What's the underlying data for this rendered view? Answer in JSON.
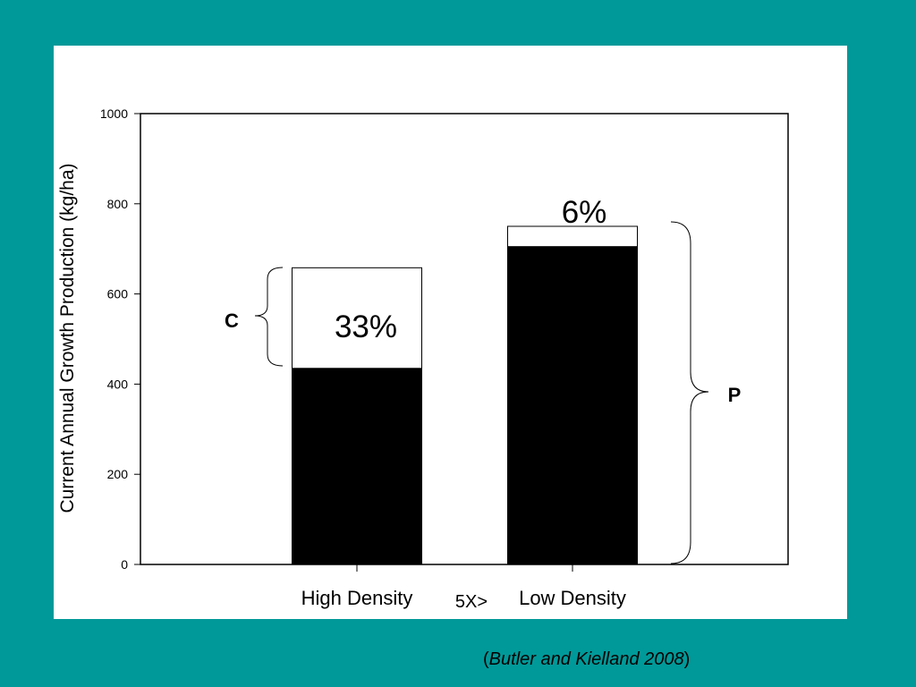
{
  "colors": {
    "background": "#009999",
    "panel": "#ffffff",
    "bar_fill": "#000000",
    "bar_top_fill": "#ffffff"
  },
  "chart_data": {
    "type": "bar",
    "stacked": true,
    "categories": [
      "High Density",
      "Low Density"
    ],
    "series": [
      {
        "values": [
          435,
          705
        ]
      },
      {
        "values": [
          223,
          45
        ]
      }
    ],
    "totals": [
      658,
      750
    ],
    "ylabel": "Current Annual Growth Production (kg/ha)",
    "xlabel": "",
    "ylim": [
      0,
      1000
    ],
    "yticks": [
      0,
      200,
      400,
      600,
      800,
      1000
    ],
    "grid": false,
    "annotations": {
      "high_pct": "33%",
      "low_pct": "6%",
      "brace_c": "C",
      "brace_p": "P",
      "ratio": "5X>"
    }
  },
  "citation": {
    "open": "(",
    "text": "Butler and Kielland 2008",
    "close": ")"
  }
}
